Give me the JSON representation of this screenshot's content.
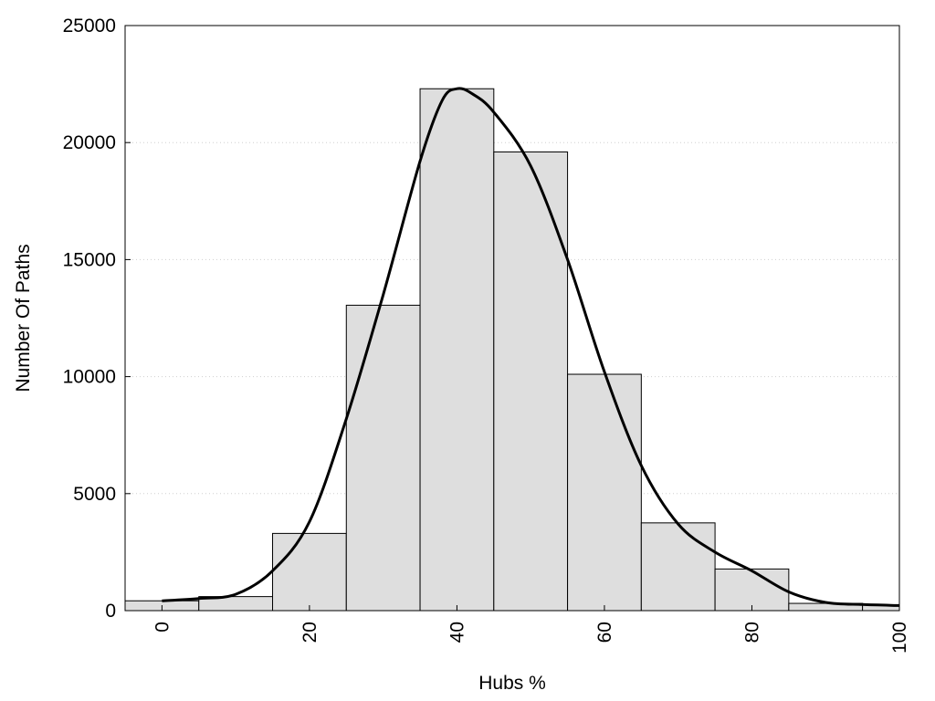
{
  "chart_data": {
    "type": "bar",
    "title": "",
    "xlabel": "Hubs %",
    "ylabel": "Number Of Paths",
    "xlim": [
      -5,
      100
    ],
    "ylim": [
      0,
      25000
    ],
    "x_ticks": [
      0,
      20,
      40,
      60,
      80,
      100
    ],
    "y_ticks": [
      0,
      5000,
      10000,
      15000,
      20000,
      25000
    ],
    "grid": "horizontal dotted",
    "bin_width": 10,
    "bins": [
      {
        "x": 0,
        "value": 420
      },
      {
        "x": 10,
        "value": 600
      },
      {
        "x": 20,
        "value": 3300
      },
      {
        "x": 30,
        "value": 13050
      },
      {
        "x": 40,
        "value": 22300
      },
      {
        "x": 50,
        "value": 19600
      },
      {
        "x": 60,
        "value": 10100
      },
      {
        "x": 70,
        "value": 3750
      },
      {
        "x": 80,
        "value": 1780
      },
      {
        "x": 90,
        "value": 310
      },
      {
        "x": 100,
        "value": 240
      }
    ],
    "curve": {
      "x": [
        0,
        5,
        10,
        15,
        20,
        25,
        30,
        35,
        38,
        40,
        42,
        45,
        50,
        55,
        60,
        65,
        70,
        75,
        80,
        85,
        90,
        95,
        100
      ],
      "y": [
        420,
        520,
        700,
        1700,
        3800,
        8200,
        13500,
        19200,
        21800,
        22300,
        22100,
        21300,
        19000,
        15000,
        10200,
        6200,
        3700,
        2500,
        1700,
        800,
        350,
        260,
        220
      ]
    },
    "colors": {
      "bar_fill": "#dedede",
      "bar_stroke": "#000000",
      "curve": "#000000",
      "grid": "#cfcfcf"
    }
  }
}
